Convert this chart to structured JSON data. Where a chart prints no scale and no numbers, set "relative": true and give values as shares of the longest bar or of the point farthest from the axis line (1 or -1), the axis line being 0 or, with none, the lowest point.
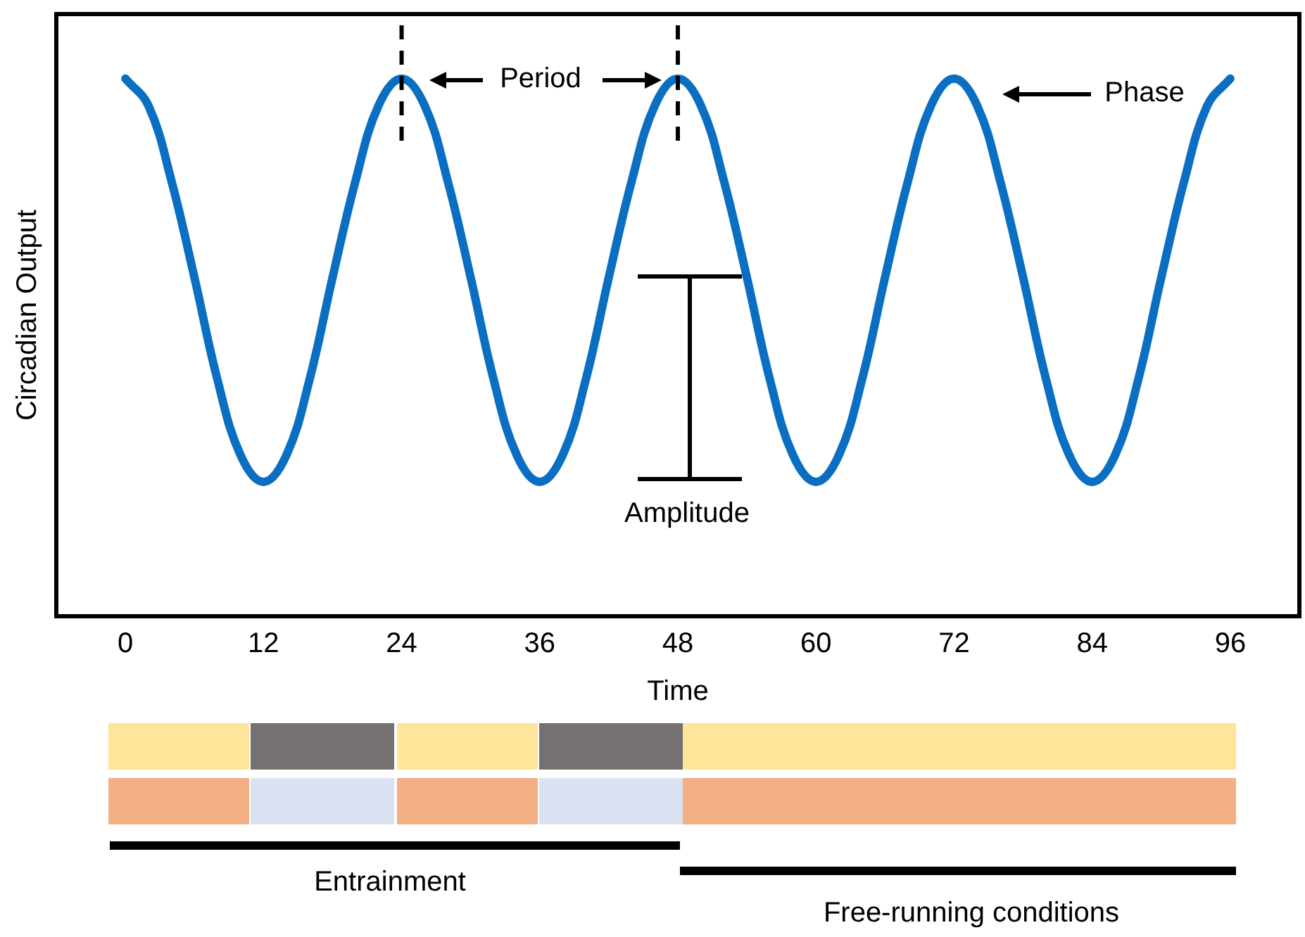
{
  "chart_data": {
    "type": "line",
    "relative": true,
    "xlabel": "Time",
    "ylabel": "Circadian Output",
    "xlim": [
      -6,
      102
    ],
    "xticks": [
      0,
      12,
      24,
      36,
      48,
      60,
      72,
      84,
      96
    ],
    "x": [
      0,
      2,
      4,
      6,
      8,
      10,
      12,
      14,
      16,
      18,
      20,
      22,
      24,
      26,
      28,
      30,
      32,
      34,
      36,
      38,
      40,
      42,
      44,
      46,
      48,
      50,
      52,
      54,
      56,
      58,
      60,
      62,
      64,
      66,
      68,
      70,
      72,
      74,
      76,
      78,
      80,
      82,
      84,
      86,
      88,
      90,
      92,
      94,
      96
    ],
    "series": [
      {
        "color": "#0a6fc2",
        "values": [
          1,
          0.95,
          0.81,
          0.63,
          0.44,
          0.3,
          0.25,
          0.3,
          0.44,
          0.63,
          0.81,
          0.95,
          1,
          0.95,
          0.81,
          0.63,
          0.44,
          0.3,
          0.25,
          0.3,
          0.44,
          0.63,
          0.81,
          0.95,
          1,
          0.95,
          0.81,
          0.63,
          0.44,
          0.3,
          0.25,
          0.3,
          0.44,
          0.63,
          0.81,
          0.95,
          1,
          0.95,
          0.81,
          0.63,
          0.44,
          0.3,
          0.25,
          0.3,
          0.44,
          0.63,
          0.81,
          0.95,
          1
        ]
      }
    ],
    "ref_lines": [
      {
        "axis": "x",
        "value": 24,
        "line_style": "dashed",
        "color": "#000000"
      },
      {
        "axis": "x",
        "value": 48,
        "line_style": "dashed",
        "color": "#000000"
      }
    ],
    "annotations": [
      "Period",
      "Phase",
      "Amplitude",
      "Entrainment",
      "Free-running conditions"
    ],
    "grid": false,
    "legend": false,
    "marker": "none",
    "line_style": "solid"
  }
}
